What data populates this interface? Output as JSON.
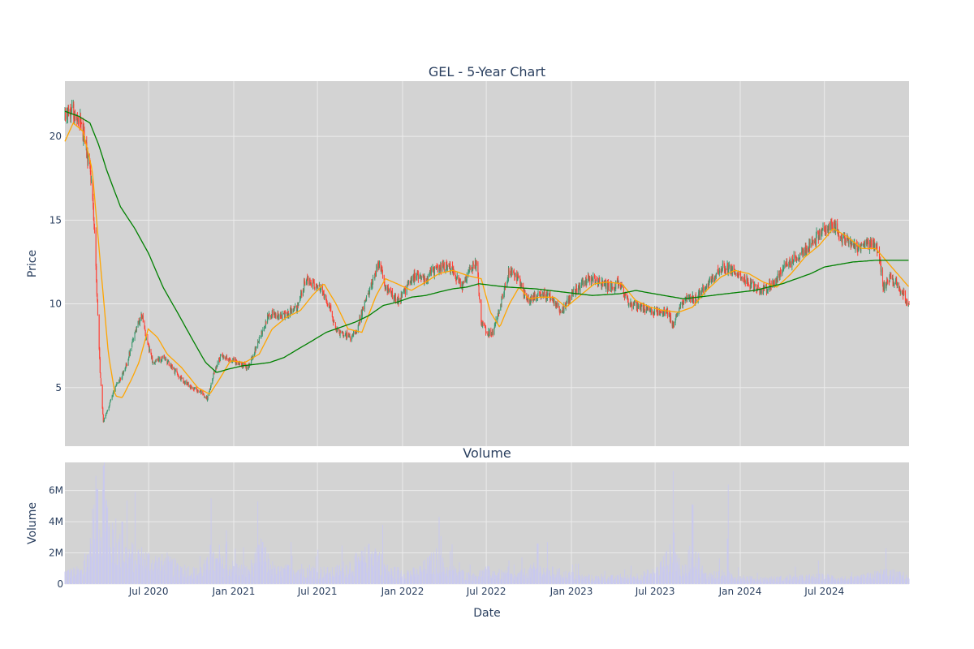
{
  "chart_data": {
    "type": "candlestick",
    "title": "GEL - 5-Year Chart",
    "subplot_title_volume": "Volume",
    "xlabel": "Date",
    "ylabel_price": "Price",
    "ylabel_volume": "Volume",
    "x_range": [
      "2020-01-02",
      "2024-12-31"
    ],
    "x_ticks": [
      {
        "date": "2020-07-01",
        "label": "Jul 2020"
      },
      {
        "date": "2021-01-01",
        "label": "Jan 2021"
      },
      {
        "date": "2021-07-01",
        "label": "Jul 2021"
      },
      {
        "date": "2022-01-01",
        "label": "Jan 2022"
      },
      {
        "date": "2022-07-01",
        "label": "Jul 2022"
      },
      {
        "date": "2023-01-01",
        "label": "Jan 2023"
      },
      {
        "date": "2023-07-01",
        "label": "Jul 2023"
      },
      {
        "date": "2024-01-01",
        "label": "Jan 2024"
      },
      {
        "date": "2024-07-01",
        "label": "Jul 2024"
      }
    ],
    "price_ylim": [
      1.5,
      23.3
    ],
    "price_ticks": [
      5,
      10,
      15,
      20
    ],
    "volume_ylim": [
      0,
      7800000
    ],
    "volume_ticks": [
      {
        "value": 0,
        "label": "0"
      },
      {
        "value": 2000000,
        "label": "2M"
      },
      {
        "value": 4000000,
        "label": "4M"
      },
      {
        "value": 6000000,
        "label": "6M"
      }
    ],
    "grid": true,
    "colors": {
      "increasing": "#3d9970",
      "decreasing": "#ff4136",
      "ma_short": "#ffa500",
      "ma_long": "#008000",
      "volume": "#c9c9f0",
      "plot_bg": "#d3d3d3",
      "grid": "#ebebeb",
      "text": "#2a3f5f"
    },
    "price_anchor_points": [
      [
        "2020-01-02",
        21.0
      ],
      [
        "2020-01-15",
        21.5
      ],
      [
        "2020-02-01",
        21.2
      ],
      [
        "2020-02-15",
        19.5
      ],
      [
        "2020-02-25",
        18.0
      ],
      [
        "2020-03-05",
        15.0
      ],
      [
        "2020-03-12",
        10.0
      ],
      [
        "2020-03-18",
        6.0
      ],
      [
        "2020-03-25",
        3.0
      ],
      [
        "2020-04-05",
        3.8
      ],
      [
        "2020-04-20",
        5.0
      ],
      [
        "2020-05-10",
        6.0
      ],
      [
        "2020-05-25",
        7.5
      ],
      [
        "2020-06-05",
        8.5
      ],
      [
        "2020-06-15",
        9.5
      ],
      [
        "2020-06-25",
        8.0
      ],
      [
        "2020-07-10",
        6.5
      ],
      [
        "2020-08-01",
        6.8
      ],
      [
        "2020-08-20",
        6.2
      ],
      [
        "2020-09-10",
        5.5
      ],
      [
        "2020-10-01",
        5.0
      ],
      [
        "2020-10-20",
        4.8
      ],
      [
        "2020-11-05",
        4.3
      ],
      [
        "2020-11-20",
        6.0
      ],
      [
        "2020-12-05",
        7.0
      ],
      [
        "2020-12-20",
        6.7
      ],
      [
        "2021-01-10",
        6.5
      ],
      [
        "2021-02-01",
        6.2
      ],
      [
        "2021-02-20",
        7.5
      ],
      [
        "2021-03-05",
        8.5
      ],
      [
        "2021-03-20",
        9.5
      ],
      [
        "2021-04-10",
        9.2
      ],
      [
        "2021-05-01",
        9.5
      ],
      [
        "2021-05-20",
        9.8
      ],
      [
        "2021-06-05",
        11.5
      ],
      [
        "2021-06-20",
        11.2
      ],
      [
        "2021-07-10",
        10.8
      ],
      [
        "2021-07-25",
        10.0
      ],
      [
        "2021-08-10",
        8.5
      ],
      [
        "2021-08-25",
        8.2
      ],
      [
        "2021-09-10",
        8.0
      ],
      [
        "2021-09-25",
        8.5
      ],
      [
        "2021-10-10",
        10.0
      ],
      [
        "2021-10-25",
        11.0
      ],
      [
        "2021-11-10",
        12.5
      ],
      [
        "2021-11-25",
        11.0
      ],
      [
        "2021-12-10",
        10.5
      ],
      [
        "2021-12-25",
        10.2
      ],
      [
        "2022-01-10",
        11.0
      ],
      [
        "2022-02-01",
        11.8
      ],
      [
        "2022-02-20",
        11.5
      ],
      [
        "2022-03-10",
        12.0
      ],
      [
        "2022-04-01",
        12.3
      ],
      [
        "2022-04-20",
        12.0
      ],
      [
        "2022-05-10",
        11.0
      ],
      [
        "2022-05-25",
        12.0
      ],
      [
        "2022-06-10",
        12.5
      ],
      [
        "2022-06-20",
        9.0
      ],
      [
        "2022-07-01",
        8.3
      ],
      [
        "2022-07-15",
        8.2
      ],
      [
        "2022-08-01",
        10.0
      ],
      [
        "2022-08-20",
        12.0
      ],
      [
        "2022-09-10",
        11.5
      ],
      [
        "2022-09-25",
        10.2
      ],
      [
        "2022-10-15",
        10.5
      ],
      [
        "2022-11-01",
        10.6
      ],
      [
        "2022-11-20",
        10.3
      ],
      [
        "2022-12-10",
        9.5
      ],
      [
        "2023-01-01",
        10.5
      ],
      [
        "2023-01-25",
        11.3
      ],
      [
        "2023-02-15",
        11.5
      ],
      [
        "2023-03-10",
        11.2
      ],
      [
        "2023-03-25",
        11.0
      ],
      [
        "2023-04-15",
        11.2
      ],
      [
        "2023-05-05",
        10.0
      ],
      [
        "2023-05-25",
        9.8
      ],
      [
        "2023-06-15",
        9.6
      ],
      [
        "2023-07-10",
        9.5
      ],
      [
        "2023-07-25",
        9.6
      ],
      [
        "2023-08-10",
        8.7
      ],
      [
        "2023-08-25",
        9.8
      ],
      [
        "2023-09-10",
        10.5
      ],
      [
        "2023-09-25",
        10.2
      ],
      [
        "2023-10-15",
        11.0
      ],
      [
        "2023-11-01",
        11.5
      ],
      [
        "2023-11-25",
        12.2
      ],
      [
        "2023-12-15",
        12.0
      ],
      [
        "2024-01-10",
        11.5
      ],
      [
        "2024-02-01",
        11.0
      ],
      [
        "2024-02-20",
        10.8
      ],
      [
        "2024-03-10",
        11.2
      ],
      [
        "2024-04-01",
        12.0
      ],
      [
        "2024-04-20",
        12.5
      ],
      [
        "2024-05-10",
        13.0
      ],
      [
        "2024-06-01",
        13.5
      ],
      [
        "2024-06-20",
        14.2
      ],
      [
        "2024-07-05",
        14.5
      ],
      [
        "2024-07-20",
        14.8
      ],
      [
        "2024-08-05",
        14.0
      ],
      [
        "2024-08-25",
        13.5
      ],
      [
        "2024-09-10",
        13.3
      ],
      [
        "2024-09-25",
        13.5
      ],
      [
        "2024-10-10",
        13.6
      ],
      [
        "2024-10-25",
        13.2
      ],
      [
        "2024-11-05",
        11.0
      ],
      [
        "2024-11-20",
        11.5
      ],
      [
        "2024-12-05",
        11.2
      ],
      [
        "2024-12-31",
        10.0
      ]
    ],
    "ma_short_points": [
      [
        "2020-01-02",
        19.7
      ],
      [
        "2020-01-20",
        20.8
      ],
      [
        "2020-02-10",
        20.3
      ],
      [
        "2020-03-01",
        18.0
      ],
      [
        "2020-03-20",
        12.0
      ],
      [
        "2020-04-05",
        7.0
      ],
      [
        "2020-04-20",
        4.5
      ],
      [
        "2020-05-05",
        4.4
      ],
      [
        "2020-05-25",
        5.5
      ],
      [
        "2020-06-10",
        6.5
      ],
      [
        "2020-06-30",
        8.5
      ],
      [
        "2020-07-20",
        8.0
      ],
      [
        "2020-08-10",
        7.0
      ],
      [
        "2020-09-10",
        6.2
      ],
      [
        "2020-10-15",
        5.0
      ],
      [
        "2020-11-10",
        4.6
      ],
      [
        "2020-12-01",
        5.5
      ],
      [
        "2020-12-25",
        6.6
      ],
      [
        "2021-01-25",
        6.5
      ],
      [
        "2021-02-25",
        7.0
      ],
      [
        "2021-03-25",
        8.5
      ],
      [
        "2021-04-25",
        9.2
      ],
      [
        "2021-05-25",
        9.6
      ],
      [
        "2021-06-20",
        10.5
      ],
      [
        "2021-07-15",
        11.2
      ],
      [
        "2021-08-10",
        10.0
      ],
      [
        "2021-09-05",
        8.5
      ],
      [
        "2021-10-05",
        8.3
      ],
      [
        "2021-11-05",
        10.5
      ],
      [
        "2021-11-25",
        11.5
      ],
      [
        "2021-12-20",
        11.2
      ],
      [
        "2022-01-20",
        10.8
      ],
      [
        "2022-02-20",
        11.3
      ],
      [
        "2022-03-20",
        11.8
      ],
      [
        "2022-04-20",
        12.0
      ],
      [
        "2022-05-20",
        11.7
      ],
      [
        "2022-06-20",
        11.5
      ],
      [
        "2022-07-10",
        9.5
      ],
      [
        "2022-07-30",
        8.6
      ],
      [
        "2022-08-20",
        10.0
      ],
      [
        "2022-09-10",
        11.0
      ],
      [
        "2022-10-01",
        10.3
      ],
      [
        "2022-10-25",
        10.4
      ],
      [
        "2022-11-25",
        10.4
      ],
      [
        "2022-12-20",
        9.8
      ],
      [
        "2023-01-20",
        10.5
      ],
      [
        "2023-02-20",
        11.2
      ],
      [
        "2023-03-20",
        11.3
      ],
      [
        "2023-04-20",
        11.2
      ],
      [
        "2023-05-20",
        10.2
      ],
      [
        "2023-06-20",
        9.8
      ],
      [
        "2023-07-20",
        9.6
      ],
      [
        "2023-08-20",
        9.5
      ],
      [
        "2023-09-20",
        9.8
      ],
      [
        "2023-10-20",
        10.8
      ],
      [
        "2023-11-20",
        11.6
      ],
      [
        "2023-12-20",
        12.0
      ],
      [
        "2024-01-20",
        11.8
      ],
      [
        "2024-02-20",
        11.3
      ],
      [
        "2024-03-20",
        11.0
      ],
      [
        "2024-04-20",
        11.8
      ],
      [
        "2024-05-20",
        12.8
      ],
      [
        "2024-06-20",
        13.5
      ],
      [
        "2024-07-20",
        14.5
      ],
      [
        "2024-08-20",
        14.0
      ],
      [
        "2024-09-20",
        13.3
      ],
      [
        "2024-10-20",
        13.3
      ],
      [
        "2024-11-20",
        12.3
      ],
      [
        "2024-12-31",
        11.0
      ]
    ],
    "ma_long_points": [
      [
        "2020-01-02",
        21.5
      ],
      [
        "2020-02-01",
        21.2
      ],
      [
        "2020-02-25",
        20.8
      ],
      [
        "2020-03-15",
        19.5
      ],
      [
        "2020-04-01",
        18.0
      ],
      [
        "2020-05-01",
        15.8
      ],
      [
        "2020-06-01",
        14.5
      ],
      [
        "2020-07-01",
        13.0
      ],
      [
        "2020-08-01",
        11.0
      ],
      [
        "2020-09-01",
        9.5
      ],
      [
        "2020-10-01",
        8.0
      ],
      [
        "2020-11-01",
        6.5
      ],
      [
        "2020-11-25",
        5.9
      ],
      [
        "2020-12-20",
        6.1
      ],
      [
        "2021-01-20",
        6.3
      ],
      [
        "2021-02-20",
        6.4
      ],
      [
        "2021-03-20",
        6.5
      ],
      [
        "2021-04-20",
        6.8
      ],
      [
        "2021-05-20",
        7.3
      ],
      [
        "2021-06-20",
        7.8
      ],
      [
        "2021-07-20",
        8.3
      ],
      [
        "2021-08-20",
        8.6
      ],
      [
        "2021-09-20",
        8.9
      ],
      [
        "2021-10-20",
        9.3
      ],
      [
        "2021-11-20",
        9.9
      ],
      [
        "2021-12-20",
        10.1
      ],
      [
        "2022-01-20",
        10.4
      ],
      [
        "2022-02-20",
        10.5
      ],
      [
        "2022-03-20",
        10.7
      ],
      [
        "2022-04-20",
        10.9
      ],
      [
        "2022-05-20",
        11.0
      ],
      [
        "2022-06-15",
        11.2
      ],
      [
        "2022-07-15",
        11.1
      ],
      [
        "2022-08-15",
        11.0
      ],
      [
        "2022-10-15",
        10.9
      ],
      [
        "2022-12-15",
        10.7
      ],
      [
        "2023-02-15",
        10.5
      ],
      [
        "2023-04-15",
        10.6
      ],
      [
        "2023-05-20",
        10.8
      ],
      [
        "2023-07-20",
        10.5
      ],
      [
        "2023-09-01",
        10.3
      ],
      [
        "2023-10-01",
        10.4
      ],
      [
        "2023-12-01",
        10.6
      ],
      [
        "2024-02-01",
        10.8
      ],
      [
        "2024-04-01",
        11.2
      ],
      [
        "2024-06-01",
        11.8
      ],
      [
        "2024-07-01",
        12.2
      ],
      [
        "2024-09-01",
        12.5
      ],
      [
        "2024-10-20",
        12.6
      ],
      [
        "2024-11-20",
        12.6
      ],
      [
        "2024-12-31",
        12.6
      ]
    ],
    "volume_anchor_points": [
      [
        "2020-01-02",
        900000
      ],
      [
        "2020-02-15",
        1000000
      ],
      [
        "2020-03-10",
        6000000
      ],
      [
        "2020-03-20",
        4500000
      ],
      [
        "2020-03-26",
        7500000
      ],
      [
        "2020-04-10",
        3500000
      ],
      [
        "2020-05-10",
        2500000
      ],
      [
        "2020-06-10",
        2200000
      ],
      [
        "2020-07-10",
        1800000
      ],
      [
        "2020-08-15",
        1500000
      ],
      [
        "2020-09-15",
        1200000
      ],
      [
        "2020-10-15",
        900000
      ],
      [
        "2020-11-15",
        1800000
      ],
      [
        "2020-12-15",
        1500000
      ],
      [
        "2021-02-01",
        1000000
      ],
      [
        "2021-03-01",
        2500000
      ],
      [
        "2021-04-01",
        1000000
      ],
      [
        "2021-06-01",
        1200000
      ],
      [
        "2021-08-01",
        900000
      ],
      [
        "2021-10-01",
        1800000
      ],
      [
        "2021-11-01",
        2500000
      ],
      [
        "2021-12-01",
        1000000
      ],
      [
        "2022-02-01",
        900000
      ],
      [
        "2022-03-15",
        2000000
      ],
      [
        "2022-04-05",
        1200000
      ],
      [
        "2022-06-01",
        600000
      ],
      [
        "2022-07-01",
        1000000
      ],
      [
        "2022-09-01",
        600000
      ],
      [
        "2022-10-15",
        1200000
      ],
      [
        "2022-12-01",
        900000
      ],
      [
        "2023-02-01",
        500000
      ],
      [
        "2023-05-01",
        500000
      ],
      [
        "2023-07-01",
        900000
      ],
      [
        "2023-08-10",
        2500000
      ],
      [
        "2023-09-01",
        800000
      ],
      [
        "2023-09-20",
        3000000
      ],
      [
        "2023-10-15",
        700000
      ],
      [
        "2023-12-01",
        800000
      ],
      [
        "2024-02-01",
        400000
      ],
      [
        "2024-05-01",
        500000
      ],
      [
        "2024-07-01",
        600000
      ],
      [
        "2024-09-01",
        400000
      ],
      [
        "2024-11-10",
        900000
      ],
      [
        "2024-12-31",
        600000
      ]
    ],
    "volume_spikes": [
      [
        "2020-03-12",
        6100000
      ],
      [
        "2020-03-26",
        7600000
      ],
      [
        "2020-04-15",
        3500000
      ],
      [
        "2020-05-05",
        4000000
      ],
      [
        "2020-11-12",
        2500000
      ],
      [
        "2021-03-05",
        2700000
      ],
      [
        "2021-11-20",
        3800000
      ],
      [
        "2022-03-20",
        4300000
      ],
      [
        "2022-10-20",
        2600000
      ],
      [
        "2023-08-10",
        3300000
      ],
      [
        "2023-09-20",
        5100000
      ],
      [
        "2023-12-05",
        2900000
      ],
      [
        "2024-11-10",
        2300000
      ]
    ]
  }
}
